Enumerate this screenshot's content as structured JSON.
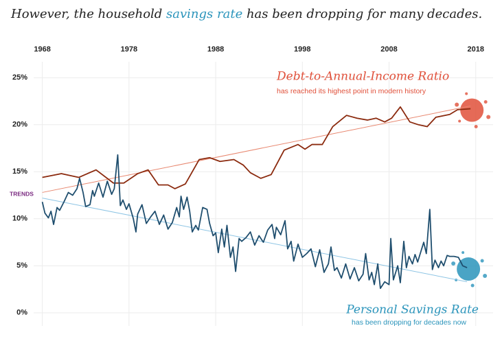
{
  "chart_data": {
    "type": "line",
    "title_parts": [
      {
        "text": "However, the household ",
        "color": "#222222"
      },
      {
        "text": "savings rate",
        "color": "#2a94bb"
      },
      {
        "text": " has been dropping for many decades.",
        "color": "#222222"
      }
    ],
    "xlim": [
      1967,
      2020
    ],
    "xticks": [
      1968,
      1978,
      1988,
      1998,
      2008,
      2018
    ],
    "ylim": [
      -1.4,
      26.7
    ],
    "yticks": [
      {
        "value": 0,
        "label": "0%"
      },
      {
        "value": 5,
        "label": "5%"
      },
      {
        "value": 10,
        "label": "10%"
      },
      {
        "value": 15,
        "label": "15%"
      },
      {
        "value": 20,
        "label": "20%"
      },
      {
        "value": 25,
        "label": "25%"
      }
    ],
    "grid": true,
    "series": [
      {
        "name": "Debt-to-Annual-Income Ratio",
        "note": "has reached its highest point in modern history",
        "color": "#8b2a0e",
        "splash": "#e0503a",
        "x": [
          1968,
          1970.2,
          1972.2,
          1974.2,
          1976.2,
          1977.4,
          1979.0,
          1980.2,
          1981.4,
          1982.5,
          1983.3,
          1984.5,
          1986.1,
          1987.3,
          1988.5,
          1990.1,
          1991.2,
          1992.0,
          1993.2,
          1994.4,
          1995.9,
          1997.5,
          1998.3,
          1999.1,
          2000.3,
          2001.5,
          2003.1,
          2004.3,
          2005.5,
          2006.5,
          2007.5,
          2008.3,
          2009.3,
          2010.4,
          2011.4,
          2012.4,
          2013.4,
          2015.0,
          2015.9,
          2017.4
        ],
        "values": [
          14.4,
          14.8,
          14.4,
          15.2,
          13.8,
          13.8,
          14.8,
          15.2,
          13.6,
          13.6,
          13.2,
          13.7,
          16.3,
          16.5,
          16.1,
          16.3,
          15.7,
          14.9,
          14.3,
          14.7,
          17.3,
          17.9,
          17.4,
          17.9,
          17.9,
          19.8,
          21.0,
          20.7,
          20.5,
          20.7,
          20.3,
          20.7,
          21.9,
          20.3,
          20.0,
          19.8,
          20.8,
          21.1,
          21.6,
          21.7
        ]
      },
      {
        "name": "Personal Savings Rate",
        "note": "has been dropping for decades now",
        "color": "#1f4e6e",
        "splash": "#2a94bb",
        "x": [
          1968,
          1968.3,
          1968.7,
          1969,
          1969.3,
          1969.7,
          1970,
          1970.5,
          1971,
          1971.5,
          1972,
          1972.3,
          1972.7,
          1973,
          1973.5,
          1973.8,
          1974,
          1974.5,
          1975,
          1975.5,
          1976,
          1976.3,
          1976.7,
          1977,
          1977.3,
          1977.7,
          1978,
          1978.5,
          1978.8,
          1979,
          1979.5,
          1980,
          1980.5,
          1981,
          1981.5,
          1982,
          1982.5,
          1983,
          1983.5,
          1983.8,
          1984,
          1984.3,
          1984.7,
          1985,
          1985.3,
          1985.7,
          1986,
          1986.5,
          1987,
          1987.3,
          1987.7,
          1988,
          1988.3,
          1988.7,
          1989,
          1989.3,
          1989.7,
          1990,
          1990.3,
          1990.7,
          1991,
          1991.5,
          1992,
          1992.5,
          1993,
          1993.5,
          1994,
          1994.5,
          1994.8,
          1995,
          1995.5,
          1996,
          1996.3,
          1996.7,
          1997,
          1997.5,
          1998,
          1998.5,
          1999,
          1999.5,
          2000,
          2000.5,
          2001,
          2001.3,
          2001.7,
          2002,
          2002.5,
          2003,
          2003.5,
          2004,
          2004.5,
          2005,
          2005.3,
          2005.7,
          2006,
          2006.3,
          2006.7,
          2007,
          2007.5,
          2008,
          2008.2,
          2008.5,
          2009,
          2009.3,
          2009.7,
          2010,
          2010.3,
          2010.7,
          2011,
          2011.3,
          2011.7,
          2012,
          2012.3,
          2012.7,
          2013,
          2013.3,
          2013.7,
          2014,
          2014.3,
          2014.7,
          2015,
          2015.5,
          2016,
          2016.5,
          2017
        ],
        "values": [
          11.8,
          10.6,
          10.1,
          10.8,
          9.4,
          11.2,
          10.9,
          11.8,
          12.8,
          12.5,
          13.2,
          14.3,
          12.8,
          11.3,
          11.5,
          13.0,
          12.4,
          13.8,
          12.3,
          14.0,
          12.6,
          13.2,
          16.8,
          11.4,
          12.0,
          11.0,
          11.6,
          10.0,
          8.6,
          10.5,
          11.5,
          9.5,
          10.2,
          10.8,
          9.4,
          10.4,
          8.9,
          9.6,
          11.2,
          10.2,
          12.4,
          11.0,
          12.3,
          10.8,
          8.6,
          9.3,
          8.8,
          11.2,
          11.0,
          9.5,
          8.2,
          8.5,
          6.4,
          8.9,
          7.0,
          9.3,
          5.9,
          7.0,
          4.4,
          7.9,
          7.6,
          8.0,
          8.6,
          7.2,
          8.2,
          7.5,
          8.8,
          9.4,
          7.9,
          9.1,
          8.3,
          9.8,
          6.8,
          7.6,
          5.5,
          7.3,
          5.9,
          6.3,
          6.8,
          4.9,
          6.7,
          4.3,
          5.2,
          7.0,
          4.5,
          4.8,
          3.7,
          5.2,
          3.6,
          4.8,
          3.4,
          4.1,
          6.3,
          3.5,
          4.3,
          3.0,
          5.2,
          2.6,
          3.3,
          3.0,
          7.9,
          3.5,
          5.0,
          3.2,
          7.6,
          4.8,
          6.0,
          5.2,
          6.2,
          5.4,
          6.6,
          7.5,
          6.3,
          11.0,
          4.6,
          5.6,
          4.8,
          5.5,
          5.0,
          6.1,
          6.0,
          6.0,
          5.9,
          5.0,
          4.8
        ]
      }
    ],
    "trend_label": "TRENDS",
    "trends": [
      {
        "color": "#e8876f",
        "x": [
          1968,
          2017.4
        ],
        "values": [
          12.8,
          22.0
        ]
      },
      {
        "color": "#8cc4e4",
        "x": [
          1968,
          2017
        ],
        "values": [
          12.2,
          3.3
        ]
      }
    ]
  }
}
